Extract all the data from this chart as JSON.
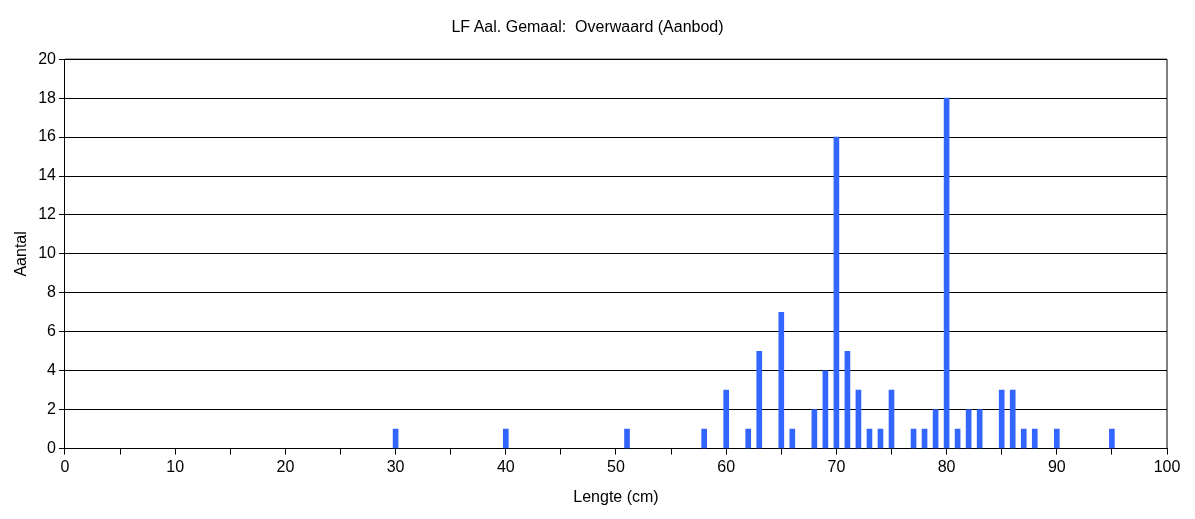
{
  "chart_data": {
    "type": "bar",
    "title": "LF Aal. Gemaal:  Overwaard (Aanbod)",
    "xlabel": "Lengte (cm)",
    "ylabel": "Aantal",
    "x": [
      30,
      40,
      51,
      58,
      60,
      62,
      63,
      65,
      66,
      68,
      69,
      70,
      71,
      72,
      73,
      74,
      75,
      77,
      78,
      79,
      80,
      81,
      82,
      83,
      85,
      86,
      87,
      88,
      90,
      95
    ],
    "values": [
      1,
      1,
      1,
      1,
      3,
      1,
      5,
      7,
      1,
      2,
      4,
      16,
      5,
      3,
      1,
      1,
      3,
      1,
      1,
      2,
      18,
      1,
      2,
      2,
      3,
      3,
      1,
      1,
      1,
      1
    ],
    "color": "#3366ff",
    "xlim": [
      0,
      100
    ],
    "xticks": [
      0,
      {
        "value": 5,
        "label": null
      },
      10,
      {
        "value": 15,
        "label": null
      },
      20,
      {
        "value": 25,
        "label": null
      },
      30,
      {
        "value": 35,
        "label": null
      },
      40,
      {
        "value": 45,
        "label": null
      },
      50,
      {
        "value": 55,
        "label": null
      },
      60,
      {
        "value": 65,
        "label": null
      },
      70,
      {
        "value": 75,
        "label": null
      },
      80,
      {
        "value": 85,
        "label": null
      },
      90,
      {
        "value": 95,
        "label": null
      },
      100
    ],
    "ylim": [
      0,
      20
    ],
    "yticks": [
      0,
      2,
      4,
      6,
      8,
      10,
      12,
      14,
      16,
      18,
      20
    ],
    "grid": "y",
    "legend": false
  }
}
